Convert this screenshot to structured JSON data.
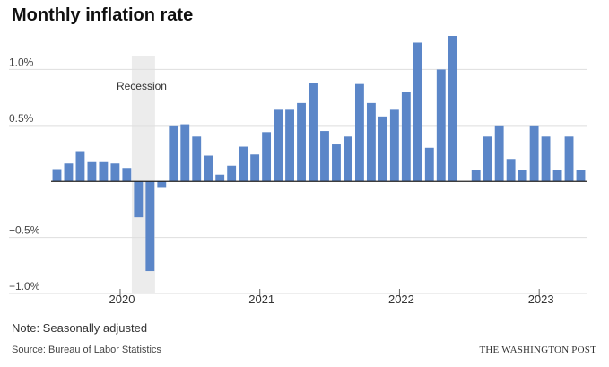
{
  "title": "Monthly inflation rate",
  "note": "Note: Seasonally adjusted",
  "source": "Source: Bureau of Labor Statistics",
  "logo": "THE WASHINGTON POST",
  "chart_data": {
    "type": "bar",
    "title": "Monthly inflation rate",
    "xlabel": "",
    "ylabel": "",
    "ylim": [
      -1.0,
      1.3
    ],
    "grid": true,
    "bar_color": "#5b86c8",
    "yticks": [
      {
        "value": 1.0,
        "label": "1.0%"
      },
      {
        "value": 0.5,
        "label": "0.5%"
      },
      {
        "value": -0.5,
        "label": "−0.5%"
      },
      {
        "value": -1.0,
        "label": "−1.0%"
      }
    ],
    "xticks": [
      {
        "index": 6,
        "label": "2020"
      },
      {
        "index": 18,
        "label": "2021"
      },
      {
        "index": 30,
        "label": "2022"
      },
      {
        "index": 42,
        "label": "2023"
      }
    ],
    "annotation": {
      "label": "Recession",
      "start_index": 7,
      "end_index": 8
    },
    "categories": [
      "Jul 2019",
      "Aug 2019",
      "Sep 2019",
      "Oct 2019",
      "Nov 2019",
      "Dec 2019",
      "Jan 2020",
      "Feb 2020",
      "Mar 2020",
      "Apr 2020",
      "May 2020",
      "Jun 2020",
      "Jul 2020",
      "Aug 2020",
      "Sep 2020",
      "Oct 2020",
      "Nov 2020",
      "Dec 2020",
      "Jan 2021",
      "Feb 2021",
      "Mar 2021",
      "Apr 2021",
      "May 2021",
      "Jun 2021",
      "Jul 2021",
      "Aug 2021",
      "Sep 2021",
      "Oct 2021",
      "Nov 2021",
      "Dec 2021",
      "Jan 2022",
      "Feb 2022",
      "Mar 2022",
      "Apr 2022",
      "May 2022",
      "Jun 2022",
      "Jul 2022",
      "Aug 2022",
      "Sep 2022",
      "Oct 2022",
      "Nov 2022",
      "Dec 2022",
      "Jan 2023",
      "Feb 2023",
      "Mar 2023",
      "Apr 2023"
    ],
    "values": [
      0.11,
      0.16,
      0.27,
      0.18,
      0.18,
      0.16,
      0.12,
      -0.32,
      -0.8,
      -0.05,
      0.5,
      0.51,
      0.4,
      0.23,
      0.06,
      0.14,
      0.31,
      0.24,
      0.44,
      0.64,
      0.64,
      0.7,
      0.88,
      0.45,
      0.33,
      0.4,
      0.87,
      0.7,
      0.58,
      0.64,
      0.8,
      1.24,
      0.3,
      1.0,
      1.3,
      0.0,
      0.1,
      0.4,
      0.5,
      0.2,
      0.1,
      0.5,
      0.4,
      0.1,
      0.4,
      0.1
    ]
  }
}
